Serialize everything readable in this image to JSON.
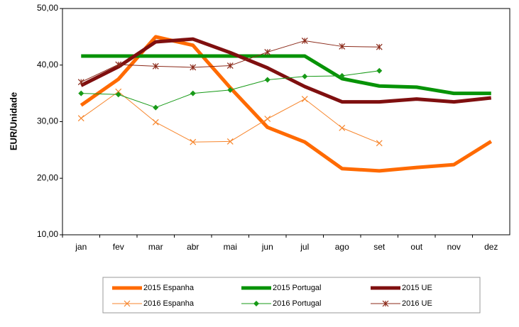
{
  "chart_data": {
    "type": "line",
    "y_label": "EUR/Unidade",
    "categories": [
      "jan",
      "fev",
      "mar",
      "abr",
      "mai",
      "jun",
      "jul",
      "ago",
      "set",
      "out",
      "nov",
      "dez"
    ],
    "ylim": [
      10,
      50
    ],
    "yticks": [
      {
        "value": 10,
        "label": "10,00"
      },
      {
        "value": 20,
        "label": "20,00"
      },
      {
        "value": 30,
        "label": "30,00"
      },
      {
        "value": 40,
        "label": "40,00"
      },
      {
        "value": 50,
        "label": "50,00"
      }
    ],
    "grid": false,
    "legend": "bottom",
    "series": [
      {
        "name": "2015 Espanha",
        "color": "#ff6a00",
        "line_width": 5,
        "marker": "none",
        "values": [
          32.9,
          37.5,
          45.0,
          43.5,
          36.0,
          29.0,
          26.4,
          21.7,
          21.3,
          21.9,
          22.4,
          26.5
        ]
      },
      {
        "name": "2015 Portugal",
        "color": "#079307",
        "line_width": 5,
        "marker": "none",
        "values": [
          41.6,
          41.6,
          41.6,
          41.6,
          41.6,
          41.6,
          41.6,
          37.6,
          36.3,
          36.1,
          35.0,
          35.0
        ]
      },
      {
        "name": "2015 UE",
        "color": "#7f0f0f",
        "line_width": 5,
        "marker": "none",
        "values": [
          36.4,
          39.7,
          44.1,
          44.6,
          42.2,
          39.5,
          36.2,
          33.5,
          33.5,
          34.0,
          33.5,
          34.2
        ]
      },
      {
        "name": "2016 Espanha",
        "color": "#f7862d",
        "line_width": 1,
        "marker": "x",
        "values": [
          30.6,
          35.3,
          29.9,
          26.4,
          26.5,
          30.5,
          34.0,
          28.9,
          26.2,
          null,
          null,
          null
        ]
      },
      {
        "name": "2016 Portugal",
        "color": "#179a17",
        "line_width": 1,
        "marker": "diamond",
        "values": [
          35.0,
          34.8,
          32.5,
          35.0,
          35.6,
          37.4,
          38.0,
          38.1,
          39.0,
          null,
          null,
          null
        ]
      },
      {
        "name": "2016 UE",
        "color": "#8b2a1a",
        "line_width": 1,
        "marker": "star",
        "values": [
          37.0,
          40.1,
          39.8,
          39.6,
          39.9,
          42.3,
          44.3,
          43.3,
          43.2,
          null,
          null,
          null
        ]
      }
    ]
  }
}
